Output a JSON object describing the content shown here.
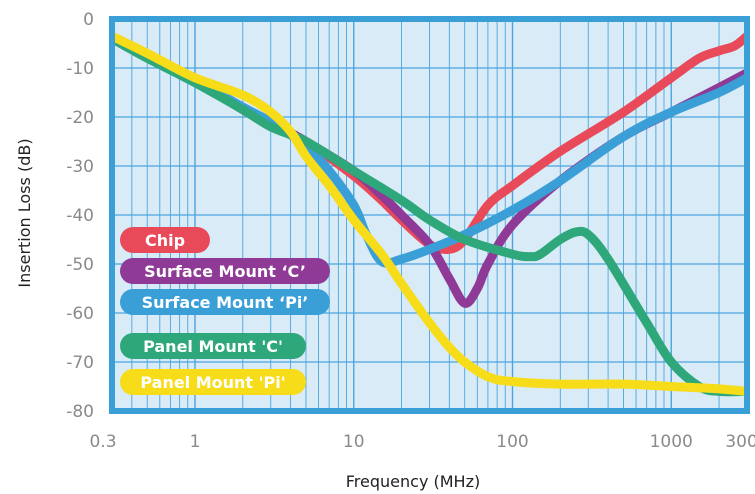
{
  "chart_data": {
    "type": "line",
    "title": "",
    "xlabel": "Frequency (MHz)",
    "ylabel": "Insertion Loss (dB)",
    "x_scale": "log",
    "xlim": [
      0.3,
      3000
    ],
    "ylim": [
      -80,
      0
    ],
    "x_tick_labels": [
      "0.3",
      "1",
      "10",
      "100",
      "1000",
      "3000"
    ],
    "x_tick_values": [
      0.3,
      1,
      10,
      100,
      1000,
      3000
    ],
    "y_tick_labels": [
      "0",
      "-10",
      "-20",
      "-30",
      "-40",
      "-50",
      "-60",
      "-70",
      "-80"
    ],
    "y_tick_values": [
      0,
      -10,
      -20,
      -30,
      -40,
      -50,
      -60,
      -70,
      -80
    ],
    "grid": true,
    "legend_position": "bottom-left",
    "colors": {
      "plot_background": "#d9ebf7",
      "frame": "#3a9fd6",
      "grid": "#4aa5de"
    },
    "series": [
      {
        "name": "Chip",
        "color": "#e84a5a",
        "x": [
          0.3,
          0.5,
          1,
          2,
          3,
          5,
          10,
          15,
          20,
          30,
          40,
          50,
          70,
          100,
          200,
          500,
          1000,
          1500,
          2000,
          2500,
          3000
        ],
        "y": [
          -4,
          -7.5,
          -12.5,
          -18.5,
          -21.5,
          -25,
          -32,
          -37,
          -41,
          -46,
          -47,
          -45,
          -38,
          -34,
          -27,
          -19,
          -12,
          -8,
          -6.5,
          -5.5,
          -3.5
        ]
      },
      {
        "name": "Surface Mount ‘C’",
        "color": "#8e3a96",
        "x": [
          0.3,
          0.5,
          1,
          2,
          3,
          5,
          10,
          15,
          20,
          30,
          40,
          50,
          60,
          70,
          100,
          200,
          500,
          1000,
          2000,
          3000
        ],
        "y": [
          -4,
          -7.5,
          -12.5,
          -18,
          -21,
          -25,
          -31,
          -36,
          -40,
          -46,
          -53,
          -58,
          -55,
          -50,
          -42,
          -33,
          -24,
          -19,
          -14,
          -11
        ]
      },
      {
        "name": "Surface Mount ‘Pi’",
        "color": "#3a9fd6",
        "x": [
          0.3,
          0.5,
          1,
          2,
          3,
          5,
          7,
          10,
          12,
          15,
          20,
          30,
          50,
          100,
          200,
          500,
          1000,
          2000,
          3000
        ],
        "y": [
          -4,
          -7.5,
          -12.5,
          -18,
          -21,
          -26,
          -31,
          -38,
          -44,
          -49.5,
          -49,
          -47,
          -44,
          -39,
          -33,
          -24,
          -19,
          -15,
          -12
        ]
      },
      {
        "name": "Panel Mount 'C'",
        "color": "#2ea87a",
        "x": [
          0.3,
          0.5,
          1,
          2,
          3,
          5,
          10,
          20,
          30,
          50,
          100,
          130,
          150,
          200,
          250,
          300,
          400,
          700,
          1000,
          1500,
          2000,
          3000
        ],
        "y": [
          -4,
          -8,
          -13,
          -18.5,
          -22,
          -25,
          -31,
          -37,
          -41,
          -45,
          -48,
          -48.5,
          -48,
          -45,
          -43.5,
          -44,
          -49,
          -62,
          -70,
          -75,
          -76,
          -76
        ]
      },
      {
        "name": "Panel Mount 'Pi'",
        "color": "#f7dc1a",
        "x": [
          0.3,
          0.5,
          1,
          2,
          3,
          4,
          5,
          7,
          10,
          15,
          20,
          30,
          40,
          50,
          70,
          100,
          200,
          500,
          1000,
          2000,
          3000
        ],
        "y": [
          -3.5,
          -7,
          -12,
          -15.5,
          -19,
          -23,
          -28,
          -34,
          -41,
          -48,
          -54,
          -62,
          -67,
          -70,
          -73,
          -74,
          -74.5,
          -74.5,
          -75,
          -75.5,
          -76
        ]
      }
    ]
  }
}
